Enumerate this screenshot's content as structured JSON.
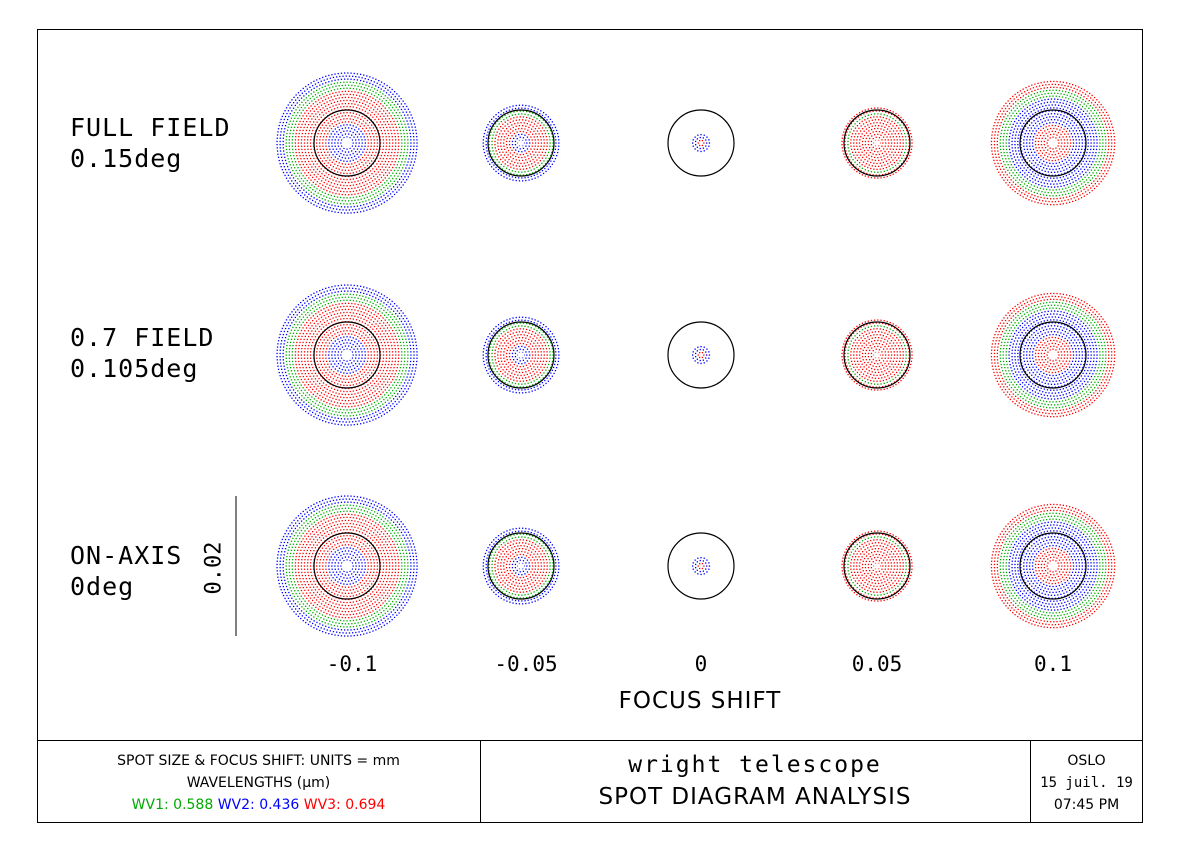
{
  "chart_data": {
    "type": "scatter",
    "title": "",
    "xlabel": "FOCUS SHIFT",
    "x_ticks": [
      "-0.1",
      "-0.05",
      "0",
      "0.05",
      "0.1"
    ],
    "x_values": [
      -0.1,
      -0.05,
      0,
      0.05,
      0.1
    ],
    "rows": [
      {
        "label": "FULL FIELD",
        "sublabel": "0.15deg"
      },
      {
        "label": "0.7 FIELD",
        "sublabel": "0.105deg"
      },
      {
        "label": "ON-AXIS",
        "sublabel": "0deg"
      }
    ],
    "scale_bar": {
      "label": "0.02",
      "value": 0.02
    },
    "spot_rms_radius_relative": [
      1.0,
      0.54,
      0.12,
      0.5,
      0.88
    ],
    "series": [
      {
        "name": "WV1",
        "wavelength_um": 0.588,
        "color": "#00aa00"
      },
      {
        "name": "WV2",
        "wavelength_um": 0.436,
        "color": "#0000ff"
      },
      {
        "name": "WV3",
        "wavelength_um": 0.694,
        "color": "#ff0000"
      }
    ]
  },
  "footer": {
    "units_line": "SPOT SIZE & FOCUS SHIFT: UNITS = mm",
    "wavelengths_line": "WAVELENGTHS (μm)",
    "wv1": "WV1: 0.588",
    "wv2": "WV2: 0.436",
    "wv3": "WV3: 0.694",
    "title": "wright telescope",
    "subtitle": "SPOT DIAGRAM ANALYSIS",
    "program": "OSLO",
    "date": "15 juil. 19",
    "time": "07:45 PM"
  },
  "colors": {
    "wv1": "#00aa00",
    "wv2": "#0000ff",
    "wv3": "#ff0000",
    "frame": "#000000"
  }
}
